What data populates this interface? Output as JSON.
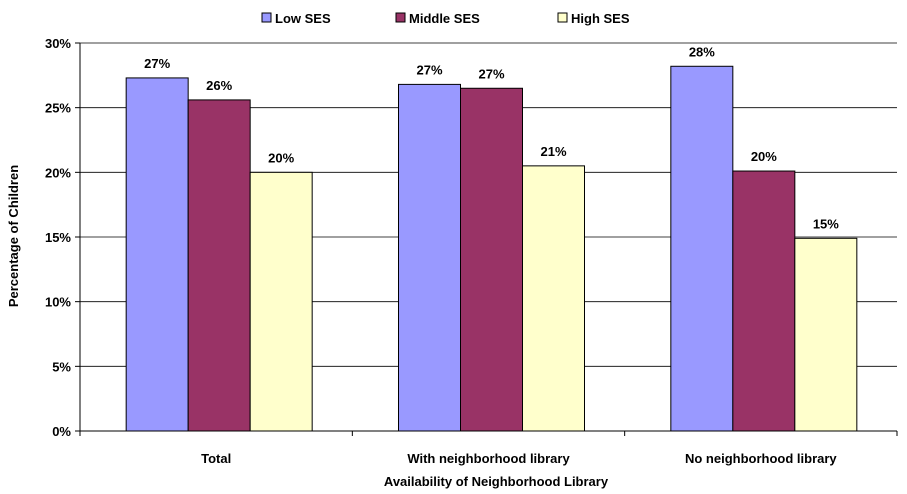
{
  "chart_data": {
    "type": "bar",
    "title": "",
    "xlabel": "Availability of Neighborhood Library",
    "ylabel": "Percentage of Children",
    "categories": [
      "Total",
      "With neighborhood library",
      "No neighborhood library"
    ],
    "series": [
      {
        "name": "Low SES",
        "color": "#9999FF",
        "values": [
          27.3,
          26.8,
          28.2
        ],
        "labels": [
          "27%",
          "27%",
          "28%"
        ]
      },
      {
        "name": "Middle SES",
        "color": "#993366",
        "values": [
          25.6,
          26.5,
          20.1
        ],
        "labels": [
          "26%",
          "27%",
          "20%"
        ]
      },
      {
        "name": "High SES",
        "color": "#FFFFCC",
        "values": [
          20.0,
          20.5,
          14.9
        ],
        "labels": [
          "20%",
          "21%",
          "15%"
        ]
      }
    ],
    "ylim": [
      0,
      30
    ],
    "yticks": [
      0,
      5,
      10,
      15,
      20,
      25,
      30
    ],
    "ytick_labels": [
      "0%",
      "5%",
      "10%",
      "15%",
      "20%",
      "25%",
      "30%"
    ],
    "grid": true,
    "legend": "top"
  }
}
